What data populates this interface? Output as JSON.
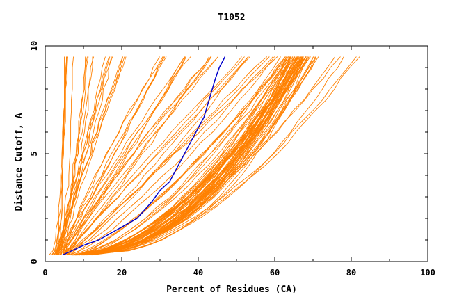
{
  "chart_data": {
    "type": "line",
    "title": "T1052",
    "xlabel": "Percent of Residues (CA)",
    "ylabel": "Distance Cutoff, A",
    "xlim": [
      0,
      100
    ],
    "ylim": [
      0,
      10
    ],
    "x_ticks": [
      0,
      20,
      40,
      60,
      80,
      100
    ],
    "x_tick_labels": [
      "0",
      "20",
      "40",
      "60",
      "80",
      "100"
    ],
    "y_ticks": [
      0,
      5,
      10
    ],
    "y_tick_labels": [
      "0",
      "5",
      "10"
    ],
    "grid": false,
    "colors": {
      "models": "#ff8000",
      "highlight": "#0000cc",
      "axes": "#000000",
      "background": "#ffffff"
    },
    "y_levels": [
      0.3,
      0.5,
      0.75,
      1,
      1.5,
      2,
      2.5,
      3,
      3.5,
      4,
      4.5,
      5,
      5.5,
      6,
      6.5,
      7,
      7.5,
      8,
      8.5,
      9,
      9.5
    ],
    "highlight_series": {
      "x": [
        4.5,
        7.0,
        10.0,
        14.0,
        18.0,
        21.5,
        24.0,
        26.0,
        28.0,
        30.0,
        32.5,
        34.0,
        35.5,
        37.0,
        38.5,
        40.0,
        41.5,
        42.5,
        43.5,
        44.5,
        45.5,
        47.0
      ],
      "y": [
        0.3,
        0.5,
        0.75,
        1,
        1.4,
        1.75,
        2.0,
        2.4,
        2.8,
        3.3,
        3.7,
        4.2,
        4.7,
        5.2,
        5.7,
        6.2,
        6.7,
        7.3,
        7.9,
        8.5,
        9.0,
        9.5
      ]
    },
    "model_groups": [
      {
        "x_lo": 2.0,
        "x_hi": 6.0,
        "k": 0.35,
        "count": 6
      },
      {
        "x_lo": 3.0,
        "x_hi": 12.0,
        "k": 0.7,
        "count": 5
      },
      {
        "x_lo": 3.0,
        "x_hi": 17.0,
        "k": 0.9,
        "count": 5
      },
      {
        "x_lo": 3.0,
        "x_hi": 21.0,
        "k": 1.0,
        "count": 4
      },
      {
        "x_lo": 4.0,
        "x_hi": 30.0,
        "k": 1.1,
        "count": 5
      },
      {
        "x_lo": 4.0,
        "x_hi": 37.0,
        "k": 1.1,
        "count": 5
      },
      {
        "x_lo": 5.0,
        "x_hi": 44.0,
        "k": 1.05,
        "count": 6
      },
      {
        "x_lo": 5.0,
        "x_hi": 53.0,
        "k": 0.95,
        "count": 5
      },
      {
        "x_lo": 6.0,
        "x_hi": 59.0,
        "k": 0.9,
        "count": 5
      },
      {
        "x_lo": 8.0,
        "x_hi": 63.0,
        "k": 0.7,
        "count": 8
      },
      {
        "x_lo": 8.0,
        "x_hi": 66.0,
        "k": 0.5,
        "count": 45
      },
      {
        "x_lo": 10.0,
        "x_hi": 70.0,
        "k": 0.45,
        "count": 8
      },
      {
        "x_lo": 10.0,
        "x_hi": 77.0,
        "k": 0.55,
        "count": 3
      },
      {
        "x_lo": 12.0,
        "x_hi": 82.0,
        "k": 0.6,
        "count": 2
      }
    ]
  }
}
